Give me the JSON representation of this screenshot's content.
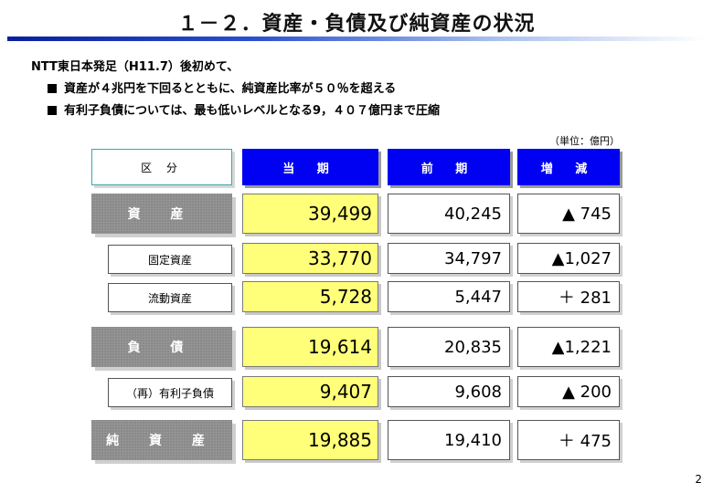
{
  "title": "１－２．資産・負債及び純資産の状況",
  "intro": "NTT東日本発足（H11.7）後初めて、",
  "bullets": [
    "資産が４兆円を下回るとともに、純資産比率が５０％を超える",
    "有利子負債については、最も低いレベルとなる9，４０７億円まで圧縮"
  ],
  "unit": "（単位：億円）",
  "headers": {
    "label": "区 分",
    "current": "当 期",
    "previous": "前 期",
    "change": "増 減"
  },
  "rows": [
    {
      "label": "資 産",
      "current": "39,499",
      "previous": "40,245",
      "change": "▲ 745"
    },
    {
      "label": "固定資産",
      "current": "33,770",
      "previous": "34,797",
      "change": "▲1,027"
    },
    {
      "label": "流動資産",
      "current": "5,728",
      "previous": "5,447",
      "change": "＋ 281"
    },
    {
      "label": "負 債",
      "current": "19,614",
      "previous": "20,835",
      "change": "▲1,221"
    },
    {
      "label": "（再）有利子負債",
      "current": "9,407",
      "previous": "9,608",
      "change": "▲ 200"
    },
    {
      "label": "純 資 産",
      "current": "19,885",
      "previous": "19,410",
      "change": "＋ 475"
    }
  ],
  "page_number": "2",
  "colors": {
    "header_blue": "#0000f2",
    "highlight_yellow": "#ffff7a",
    "label_gray": "#8a8a8a"
  }
}
